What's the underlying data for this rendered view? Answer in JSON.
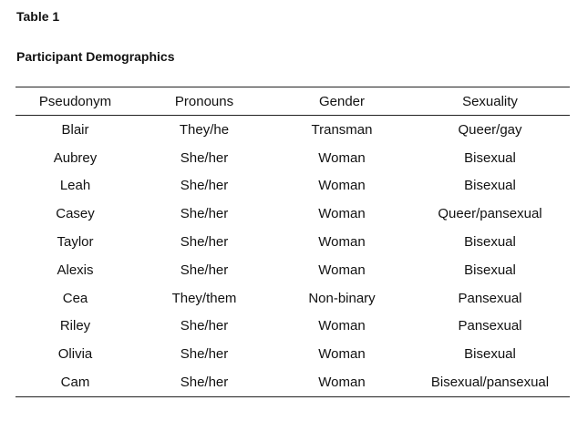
{
  "table_number": "Table 1",
  "title": "Participant Demographics",
  "columns": [
    "Pseudonym",
    "Pronouns",
    "Gender",
    "Sexuality"
  ],
  "rows": [
    [
      "Blair",
      "They/he",
      "Transman",
      "Queer/gay"
    ],
    [
      "Aubrey",
      "She/her",
      "Woman",
      "Bisexual"
    ],
    [
      "Leah",
      "She/her",
      "Woman",
      "Bisexual"
    ],
    [
      "Casey",
      "She/her",
      "Woman",
      "Queer/pansexual"
    ],
    [
      "Taylor",
      "She/her",
      "Woman",
      "Bisexual"
    ],
    [
      "Alexis",
      "She/her",
      "Woman",
      "Bisexual"
    ],
    [
      "Cea",
      "They/them",
      "Non-binary",
      "Pansexual"
    ],
    [
      "Riley",
      "She/her",
      "Woman",
      "Pansexual"
    ],
    [
      "Olivia",
      "She/her",
      "Woman",
      "Bisexual"
    ],
    [
      "Cam",
      "She/her",
      "Woman",
      "Bisexual/pansexual"
    ]
  ]
}
